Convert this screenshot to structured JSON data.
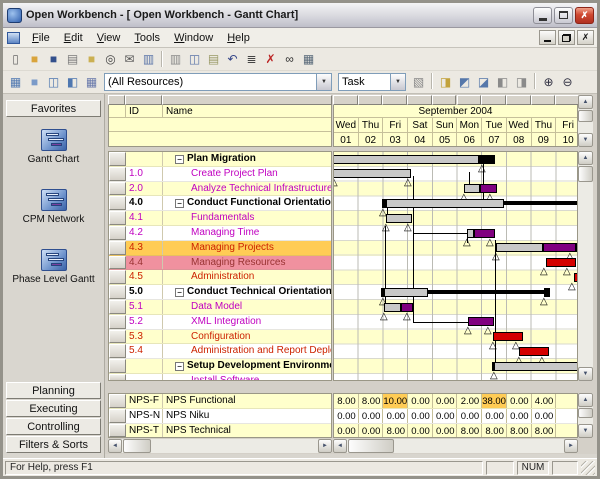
{
  "window": {
    "title": "Open Workbench - [  Open Workbench - Gantt Chart]",
    "status": "For Help, press F1",
    "num_indicator": "NUM"
  },
  "menu": {
    "items": [
      "File",
      "Edit",
      "View",
      "Tools",
      "Window",
      "Help"
    ]
  },
  "toolbar": {
    "row1": [
      {
        "n": "new-icon",
        "g": "▯",
        "c": "#6a6a6a"
      },
      {
        "n": "open-icon",
        "g": "■",
        "c": "#D9A43C"
      },
      {
        "n": "save-icon",
        "g": "■",
        "c": "#33508C"
      },
      {
        "n": "print-icon",
        "g": "▤",
        "c": "#7A7A7A"
      },
      {
        "n": "project-folder-icon",
        "g": "■",
        "c": "#CBB052"
      },
      {
        "n": "preview-icon",
        "g": "◎",
        "c": "#444444"
      },
      {
        "n": "mail-icon",
        "g": "✉",
        "c": "#555555"
      },
      {
        "n": "resource-key-icon",
        "g": "▥",
        "c": "#5A74A8"
      },
      {
        "sep": true
      },
      {
        "n": "assign-resource-icon",
        "g": "▥",
        "c": "#8a8a8a"
      },
      {
        "n": "properties-icon",
        "g": "◫",
        "c": "#5A74A8"
      },
      {
        "n": "paste-icon",
        "g": "▤",
        "c": "#999966"
      },
      {
        "n": "undo-icon",
        "g": "↶",
        "c": "#334488"
      },
      {
        "n": "outline-icon",
        "g": "≣",
        "c": "#444444"
      },
      {
        "n": "delete-icon",
        "g": "✗",
        "c": "#BB2222"
      },
      {
        "n": "find-icon",
        "g": "∞",
        "c": "#333333"
      },
      {
        "n": "timescale-icon",
        "g": "▦",
        "c": "#556677"
      }
    ],
    "row2_left": [
      {
        "n": "view-definition-icon",
        "g": "▦",
        "c": "#4E77B0"
      },
      {
        "n": "spreadsheet-view-icon",
        "g": "■",
        "c": "#7A9AC8"
      },
      {
        "n": "gantt-view-icon",
        "g": "◫",
        "c": "#4E77B0"
      },
      {
        "n": "sort-icon",
        "g": "◧",
        "c": "#4E77B0"
      },
      {
        "n": "filter-icon",
        "g": "▦",
        "c": "#6677AA"
      }
    ],
    "resource_filter": "(All Resources)",
    "view_mode": "Task",
    "row2_right": [
      {
        "n": "details-icon",
        "g": "▧",
        "c": "#888888"
      },
      {
        "sep": true
      },
      {
        "n": "insert-task-icon",
        "g": "◨",
        "c": "#C2A23A"
      },
      {
        "n": "indent-icon",
        "g": "◩",
        "c": "#5577AA"
      },
      {
        "n": "outdent-icon",
        "g": "◪",
        "c": "#5577AA"
      },
      {
        "n": "collapse-all-icon",
        "g": "◧",
        "c": "#8a8a8a"
      },
      {
        "n": "expand-all-icon",
        "g": "◨",
        "c": "#8a8a8a"
      },
      {
        "sep": true
      },
      {
        "n": "zoom-in-icon",
        "g": "⊕",
        "c": "#333344"
      },
      {
        "n": "zoom-out-icon",
        "g": "⊖",
        "c": "#333344"
      }
    ]
  },
  "sidebar": {
    "top_button": "Favorites",
    "views": [
      {
        "label": "Gantt Chart"
      },
      {
        "label": "CPM Network"
      },
      {
        "label": "Phase Level Gantt"
      }
    ],
    "bottom_buttons": [
      "Planning",
      "Executing",
      "Controlling",
      "Filters & Sorts"
    ]
  },
  "grid": {
    "columns": [
      "ID",
      "Name"
    ]
  },
  "timeline": {
    "month_label": "September 2004",
    "days": [
      {
        "dow": "Wed",
        "num": "01"
      },
      {
        "dow": "Thu",
        "num": "02"
      },
      {
        "dow": "Fri",
        "num": "03"
      },
      {
        "dow": "Sat",
        "num": "04"
      },
      {
        "dow": "Sun",
        "num": "05"
      },
      {
        "dow": "Mon",
        "num": "06"
      },
      {
        "dow": "Tue",
        "num": "07"
      },
      {
        "dow": "Wed",
        "num": "08"
      },
      {
        "dow": "Thu",
        "num": "09"
      },
      {
        "dow": "Fri",
        "num": "10"
      }
    ]
  },
  "tasks": [
    {
      "id": "",
      "name": "Plan Migration",
      "sum": 1,
      "color": "#000000",
      "bg": "#FFFFCC",
      "gbg": "#FFFFCC",
      "bars": [
        [
          "b",
          -12,
          157,
          "#C8C8C8"
        ],
        [
          "b",
          145,
          16,
          "#000000"
        ]
      ],
      "mk": [
        144
      ]
    },
    {
      "id": "1.0",
      "name": "Create Project Plan",
      "sum": 0,
      "color": "#C000C0",
      "bg": "#FFFFFF",
      "gbg": "#FFFFFF",
      "bars": [
        [
          "b",
          -12,
          89,
          "#C8C8C8"
        ]
      ],
      "mk": [
        -4,
        70
      ]
    },
    {
      "id": "2.0",
      "name": "Analyze Technical Infrastructure",
      "sum": 0,
      "color": "#C000C0",
      "bg": "#FFFFCC",
      "gbg": "#FFFFCC",
      "bars": [
        [
          "b",
          130,
          16,
          "#C8C8C8"
        ],
        [
          "b",
          146,
          17,
          "#800080"
        ]
      ],
      "mk": [
        126,
        152
      ]
    },
    {
      "id": "4.0",
      "name": "Conduct Functional Orientation",
      "sum": 1,
      "color": "#000000",
      "bg": "#FFFFFF",
      "gbg": "#FFFFFF",
      "bars": [
        [
          "b",
          48,
          6,
          "#000000"
        ],
        [
          "b",
          52,
          118,
          "#C8C8C8"
        ],
        [
          "l",
          170,
          78
        ]
      ],
      "mk": [
        45
      ]
    },
    {
      "id": "4.1",
      "name": "Fundamentals",
      "sum": 0,
      "color": "#C000C0",
      "bg": "#FFFFCC",
      "gbg": "#FFFFCC",
      "bars": [
        [
          "b",
          52,
          26,
          "#C8C8C8"
        ]
      ],
      "mk": [
        48,
        70
      ]
    },
    {
      "id": "4.2",
      "name": "Managing Time",
      "sum": 0,
      "color": "#C000C0",
      "bg": "#FFFFFF",
      "gbg": "#FFFFFF",
      "bars": [
        [
          "b",
          133,
          7,
          "#C8C8C8"
        ],
        [
          "b",
          140,
          21,
          "#800080"
        ]
      ],
      "mk": [
        129,
        152
      ]
    },
    {
      "id": "4.3",
      "name": "Managing Projects",
      "sum": 0,
      "color": "#CC2200",
      "bg": "#FFCC55",
      "gbg": "#FFFFCC",
      "bars": [
        [
          "b",
          162,
          47,
          "#C8C8C8"
        ],
        [
          "b",
          209,
          33,
          "#800080"
        ],
        [
          "b",
          242,
          6,
          "#FFFFFF"
        ]
      ],
      "mk": [
        158,
        232
      ]
    },
    {
      "id": "4.4",
      "name": "Managing Resources",
      "sum": 0,
      "color": "#993333",
      "bg": "#F0919F",
      "gbg": "#FFFFFF",
      "bars": [
        [
          "b",
          212,
          30,
          "#D40000"
        ]
      ],
      "mk": [
        206,
        229
      ]
    },
    {
      "id": "4.5",
      "name": "Administration",
      "sum": 0,
      "color": "#CC2200",
      "bg": "#FFFFCC",
      "gbg": "#FFFFCC",
      "bars": [
        [
          "b",
          240,
          12,
          "#D40000"
        ]
      ],
      "mk": [
        234
      ]
    },
    {
      "id": "5.0",
      "name": "Conduct Technical Orientation",
      "sum": 1,
      "color": "#000000",
      "bg": "#FFFFFF",
      "gbg": "#FFFFFF",
      "bars": [
        [
          "b",
          47,
          5,
          "#000000"
        ],
        [
          "b",
          50,
          44,
          "#C8C8C8"
        ],
        [
          "l",
          94,
          118
        ],
        [
          "b",
          210,
          6,
          "#000000"
        ]
      ],
      "mk": [
        45,
        206
      ]
    },
    {
      "id": "5.1",
      "name": "Data Model",
      "sum": 0,
      "color": "#C000C0",
      "bg": "#FFFFCC",
      "gbg": "#FFFFCC",
      "bars": [
        [
          "b",
          50,
          17,
          "#C8C8C8"
        ],
        [
          "b",
          67,
          12,
          "#800080"
        ]
      ],
      "mk": [
        46,
        69
      ]
    },
    {
      "id": "5.2",
      "name": "XML Integration",
      "sum": 0,
      "color": "#C000C0",
      "bg": "#FFFFFF",
      "gbg": "#FFFFFF",
      "bars": [
        [
          "b",
          134,
          26,
          "#800080"
        ]
      ],
      "mk": [
        130,
        150
      ]
    },
    {
      "id": "5.3",
      "name": "Configuration",
      "sum": 0,
      "color": "#CC2200",
      "bg": "#FFFFCC",
      "gbg": "#FFFFCC",
      "bars": [
        [
          "b",
          159,
          30,
          "#D40000"
        ]
      ],
      "mk": [
        155,
        178
      ]
    },
    {
      "id": "5.4",
      "name": "Administration and Report Deployment",
      "sum": 0,
      "color": "#CC2200",
      "bg": "#FFFFFF",
      "gbg": "#FFFFFF",
      "bars": [
        [
          "b",
          185,
          30,
          "#D40000"
        ]
      ],
      "mk": [
        181,
        204
      ]
    },
    {
      "id": "",
      "name": "Setup Development Environment",
      "sum": 1,
      "color": "#000000",
      "bg": "#FFFFCC",
      "gbg": "#FFFFCC",
      "bars": [
        [
          "b",
          158,
          6,
          "#000000"
        ],
        [
          "b",
          160,
          85,
          "#C8C8C8"
        ],
        [
          "b",
          243,
          6,
          "#000000"
        ]
      ],
      "mk": [
        156
      ]
    },
    {
      "id": "",
      "name": "Install Software",
      "sum": 0,
      "clip": 1,
      "color": "#C000C0",
      "bg": "#FFFFFF",
      "gbg": "#FFFFFF",
      "bars": [],
      "mk": []
    }
  ],
  "dependencies": [
    [
      "v",
      149,
      11,
      48
    ],
    [
      "v",
      79,
      24,
      170
    ],
    [
      "h",
      170,
      79,
      134
    ],
    [
      "h",
      81,
      79,
      133
    ],
    [
      "v",
      133,
      81,
      91
    ],
    [
      "v",
      135,
      20,
      34
    ],
    [
      "v",
      53,
      52,
      68
    ],
    [
      "v",
      51,
      74,
      155
    ],
    [
      "v",
      161,
      88,
      215
    ]
  ],
  "resources": {
    "rows": [
      {
        "id": "NPS-F",
        "name": "NPS Functional",
        "bg": "#FFFFCC",
        "values": [
          "8.00",
          "8.00",
          "10.00",
          "0.00",
          "0.00",
          "2.00",
          "38.00",
          "0.00",
          "4.00",
          ""
        ],
        "hl": [
          2,
          6
        ]
      },
      {
        "id": "NPS-N",
        "name": "NPS Niku",
        "bg": "#FFFFFF",
        "values": [
          "0.00",
          "0.00",
          "0.00",
          "0.00",
          "0.00",
          "0.00",
          "0.00",
          "0.00",
          "0.00",
          ""
        ],
        "hl": []
      },
      {
        "id": "NPS-T",
        "name": "NPS Technical",
        "bg": "#FFFFCC",
        "values": [
          "0.00",
          "0.00",
          "8.00",
          "0.00",
          "0.00",
          "8.00",
          "8.00",
          "8.00",
          "8.00",
          ""
        ],
        "hl": []
      }
    ],
    "highlight_color": "#FFCC55"
  }
}
